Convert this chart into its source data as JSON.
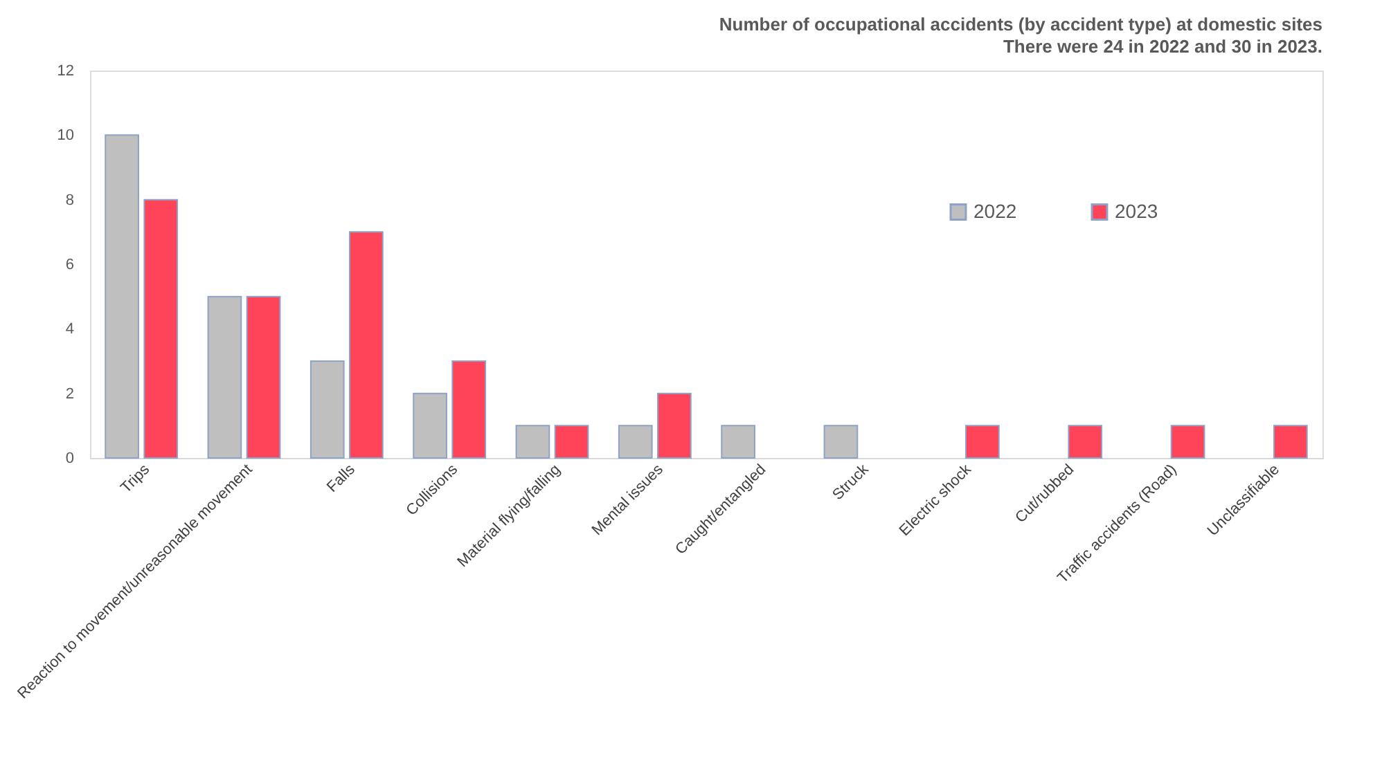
{
  "chart_data": {
    "type": "bar",
    "title": "Number of occupational accidents (by accident type) at domestic sites",
    "subtitle": "There were 24 in 2022 and 30 in 2023.",
    "categories": [
      "Trips",
      "Reaction to movement/unreasonable movement",
      "Falls",
      "Collisions",
      "Material flying/falling",
      "Mental issues",
      "Caught/entangled",
      "Struck",
      "Electric shock",
      "Cut/rubbed",
      "Traffic accidents (Road)",
      "Unclassifiable"
    ],
    "series": [
      {
        "name": "2022",
        "color": "#bfbfbf",
        "values": [
          10,
          5,
          3,
          2,
          1,
          1,
          1,
          1,
          null,
          null,
          null,
          null
        ]
      },
      {
        "name": "2023",
        "color": "#ff4459",
        "values": [
          8,
          5,
          7,
          3,
          1,
          2,
          null,
          null,
          1,
          1,
          1,
          1
        ]
      }
    ],
    "ylim": [
      0,
      12
    ],
    "yticks": [
      0,
      2,
      4,
      6,
      8,
      10,
      12
    ],
    "grid": false,
    "legend": "right"
  }
}
